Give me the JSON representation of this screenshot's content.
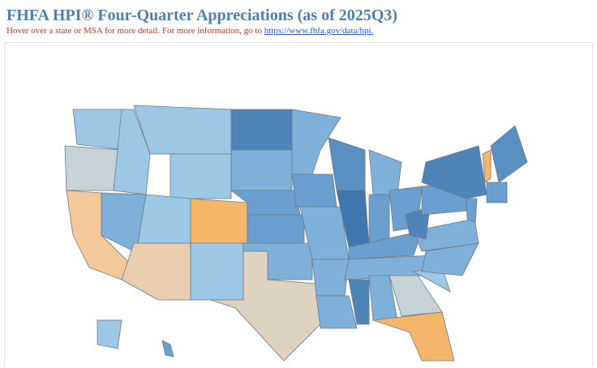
{
  "header": {
    "title": "FHFA HPI® Four-Quarter Appreciations (as of 2025Q3)",
    "subtitle": "Hover over a state or MSA for more detail. For more information, go to",
    "link": "https://www.fhfa.gov/data/hpi."
  }
}
